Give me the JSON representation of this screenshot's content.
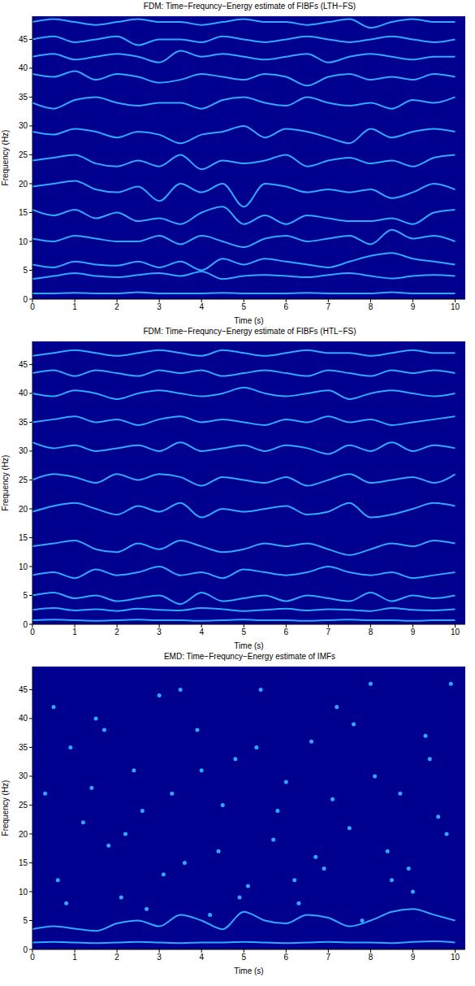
{
  "chart_data": [
    {
      "type": "line",
      "title": "FDM: Time−Frequncy−Energy estimate of FIBFs (LTH−FS)",
      "xlabel": "Time (s)",
      "ylabel": "Frequency (Hz)",
      "xlim": [
        0,
        10.24
      ],
      "xticks": [
        0,
        1,
        2,
        3,
        4,
        5,
        6,
        7,
        8,
        9,
        10
      ],
      "ylim": [
        0,
        49
      ],
      "yticks": [
        0,
        5,
        10,
        15,
        20,
        25,
        30,
        35,
        40,
        45
      ],
      "grid": false,
      "x": [
        0,
        0.5,
        1,
        1.5,
        2,
        2.5,
        3,
        3.5,
        4,
        4.5,
        5,
        5.5,
        6,
        6.5,
        7,
        7.5,
        8,
        8.5,
        9,
        9.5,
        10
      ],
      "series": [
        {
          "color": "#2fa8ff",
          "values": [
            1,
            1,
            1.1,
            1,
            1,
            1.2,
            1,
            1,
            1,
            1.1,
            1,
            1,
            1,
            1.1,
            1,
            1,
            1,
            1.2,
            1,
            1,
            1
          ]
        },
        {
          "color": "#2fa8ff",
          "values": [
            3.5,
            4,
            4.5,
            4,
            3.8,
            4.2,
            4.5,
            4,
            4.8,
            3.5,
            4,
            4.2,
            4,
            3.8,
            4.2,
            4.5,
            4,
            3.6,
            4,
            4.2,
            4
          ]
        },
        {
          "color": "#2fa8ff",
          "values": [
            6,
            5.5,
            6.5,
            6,
            5.8,
            6.5,
            5.5,
            6.5,
            5,
            7,
            6,
            7,
            6.5,
            6,
            5.5,
            6.5,
            7.5,
            8,
            7,
            6.5,
            6
          ]
        },
        {
          "color": "#2fa8ff",
          "values": [
            10.5,
            10,
            11,
            10.5,
            10,
            10,
            11,
            9.5,
            11,
            10,
            9,
            10.5,
            11,
            10,
            10.5,
            11,
            9.5,
            12,
            10.5,
            11,
            10
          ]
        },
        {
          "color": "#2fa8ff",
          "values": [
            15.5,
            14.5,
            15.5,
            14,
            15,
            13.5,
            14,
            13,
            15,
            16,
            13,
            14.5,
            13,
            14.5,
            14,
            13.5,
            13.5,
            14,
            13,
            15,
            15.5
          ]
        },
        {
          "color": "#2fa8ff",
          "values": [
            19.5,
            20,
            20.5,
            19,
            18.5,
            19.5,
            17,
            20,
            18.5,
            20,
            16,
            20,
            19.5,
            18.5,
            19,
            18.5,
            19,
            17.5,
            18.5,
            20,
            19
          ]
        },
        {
          "color": "#2fa8ff",
          "values": [
            24,
            24.5,
            25,
            23.5,
            23,
            24,
            23,
            25,
            22.5,
            24,
            23.5,
            24,
            25,
            23,
            24,
            24.5,
            23.5,
            24,
            23,
            24.5,
            25
          ]
        },
        {
          "color": "#2fa8ff",
          "values": [
            29,
            28.5,
            29.5,
            29,
            28,
            29,
            28.5,
            27,
            28.5,
            29,
            30,
            28,
            29.5,
            29,
            28,
            27,
            29.5,
            28,
            29,
            29.5,
            29
          ]
        },
        {
          "color": "#2fa8ff",
          "values": [
            34,
            33,
            34.5,
            35,
            34,
            33.5,
            34,
            34,
            33,
            34.5,
            35,
            34,
            33.5,
            35,
            34,
            33.5,
            34,
            33,
            34.5,
            34,
            35
          ]
        },
        {
          "color": "#2fa8ff",
          "values": [
            39,
            38.5,
            39.5,
            38,
            39,
            38.5,
            37.5,
            38,
            39,
            38.5,
            38,
            39,
            38.5,
            37,
            38.5,
            39,
            38,
            38.5,
            38,
            39,
            38.5
          ]
        },
        {
          "color": "#2fa8ff",
          "values": [
            42,
            42.5,
            41.5,
            42,
            42.5,
            42,
            41,
            43,
            42,
            42.5,
            42,
            41.5,
            42,
            42.5,
            41,
            42,
            42.5,
            42,
            41.5,
            42,
            42
          ]
        },
        {
          "color": "#2fa8ff",
          "values": [
            45,
            45.5,
            44.5,
            45,
            45.5,
            44,
            45,
            45,
            44.5,
            45.5,
            45,
            44.5,
            45,
            45.5,
            45,
            44.5,
            45,
            45.5,
            45,
            44.5,
            45
          ]
        },
        {
          "color": "#2fa8ff",
          "values": [
            48,
            48.5,
            48,
            47.5,
            48,
            48.5,
            48,
            48,
            47.5,
            48,
            48.5,
            48,
            48,
            47.5,
            48,
            48.5,
            47,
            48,
            48.5,
            48,
            48
          ]
        }
      ]
    },
    {
      "type": "line",
      "title": "FDM: Time−Frequncy−Energy estimate of FIBFs (HTL−FS)",
      "xlabel": "Time (s)",
      "ylabel": "Frequency (Hz)",
      "xlim": [
        0,
        10.24
      ],
      "xticks": [
        0,
        1,
        2,
        3,
        4,
        5,
        6,
        7,
        8,
        9,
        10
      ],
      "ylim": [
        0,
        49
      ],
      "yticks": [
        0,
        5,
        10,
        15,
        20,
        25,
        30,
        35,
        40,
        45
      ],
      "grid": false,
      "x": [
        0,
        0.5,
        1,
        1.5,
        2,
        2.5,
        3,
        3.5,
        4,
        4.5,
        5,
        5.5,
        6,
        6.5,
        7,
        7.5,
        8,
        8.5,
        9,
        9.5,
        10
      ],
      "series": [
        {
          "color": "#2fa8ff",
          "values": [
            0.7,
            0.8,
            0.7,
            0.6,
            0.7,
            0.8,
            0.7,
            0.7,
            0.6,
            0.7,
            0.8,
            0.7,
            0.7,
            0.6,
            0.7,
            0.8,
            0.7,
            0.7,
            0.6,
            0.7,
            0.7
          ]
        },
        {
          "color": "#2fa8ff",
          "values": [
            2.5,
            2.8,
            2.4,
            2.6,
            2.3,
            2.7,
            2.5,
            2.4,
            2.8,
            2.6,
            2.3,
            2.5,
            2.7,
            2.4,
            2.6,
            2.5,
            2.3,
            2.8,
            2.5,
            2.4,
            2.6
          ]
        },
        {
          "color": "#2fa8ff",
          "values": [
            5,
            5.5,
            4.5,
            5,
            4,
            4.5,
            5,
            3.5,
            5.5,
            4,
            4.5,
            5,
            4,
            5,
            4.5,
            4,
            5.5,
            4,
            5,
            4.5,
            5
          ]
        },
        {
          "color": "#2fa8ff",
          "values": [
            8.5,
            9,
            8,
            9.5,
            8.5,
            9,
            10,
            8.5,
            9,
            8,
            9.5,
            9,
            8.5,
            9,
            10,
            9,
            8.5,
            9,
            8,
            8.5,
            9
          ]
        },
        {
          "color": "#2fa8ff",
          "values": [
            13.5,
            14,
            14.5,
            13,
            12.5,
            14,
            13,
            14.5,
            13.5,
            12.5,
            13,
            14,
            13.5,
            14,
            13,
            12,
            13,
            14,
            13.5,
            14.5,
            14
          ]
        },
        {
          "color": "#2fa8ff",
          "values": [
            19.5,
            20.5,
            21,
            20,
            19,
            20.5,
            19.5,
            21,
            18.5,
            20,
            19.5,
            20,
            20.5,
            19,
            19.5,
            21,
            18.5,
            19,
            20,
            21,
            20.5
          ]
        },
        {
          "color": "#2fa8ff",
          "values": [
            25,
            26,
            25.5,
            24.5,
            26,
            25,
            26,
            25.5,
            24,
            25.5,
            25,
            24.5,
            25.5,
            24,
            25,
            26,
            24.5,
            25,
            25.5,
            24.5,
            26
          ]
        },
        {
          "color": "#2fa8ff",
          "values": [
            31.5,
            30.5,
            31,
            30,
            30.5,
            31,
            30,
            31.5,
            30,
            30.5,
            31,
            30,
            31,
            30.5,
            29.5,
            31,
            30,
            31.5,
            30,
            31,
            30.5
          ]
        },
        {
          "color": "#2fa8ff",
          "values": [
            35,
            35.5,
            36,
            35,
            35.5,
            34.5,
            35.5,
            36,
            35,
            35.5,
            35,
            34.5,
            35.5,
            35,
            36,
            35,
            35.5,
            34.5,
            35,
            35.5,
            36
          ]
        },
        {
          "color": "#2fa8ff",
          "values": [
            40,
            39.5,
            40.5,
            40,
            39,
            40,
            40.5,
            40,
            39.5,
            40,
            41,
            40,
            39.5,
            40,
            40.5,
            39,
            40,
            40.5,
            40,
            39.5,
            40
          ]
        },
        {
          "color": "#2fa8ff",
          "values": [
            43.5,
            44,
            43,
            44,
            43.5,
            43,
            44,
            43.5,
            44,
            43,
            43.5,
            44,
            43.5,
            43,
            44,
            43.5,
            43,
            44,
            43.5,
            44,
            43.5
          ]
        },
        {
          "color": "#2fa8ff",
          "values": [
            46.5,
            47,
            47.5,
            47,
            46.5,
            47,
            47.5,
            47,
            46.5,
            47.5,
            47,
            46.5,
            47,
            47.5,
            47,
            47,
            46.5,
            47,
            47.5,
            47,
            47
          ]
        }
      ]
    },
    {
      "type": "scatter",
      "title": "EMD: Time−Frequncy−Energy estimate of IMFs",
      "xlabel": "Time (s)",
      "ylabel": "Frequency (Hz)",
      "xlim": [
        0,
        10.24
      ],
      "xticks": [
        0,
        1,
        2,
        3,
        4,
        5,
        6,
        7,
        8,
        9,
        10
      ],
      "ylim": [
        0,
        49
      ],
      "yticks": [
        0,
        5,
        10,
        15,
        20,
        25,
        30,
        35,
        40,
        45
      ],
      "grid": false,
      "x": [
        0,
        0.5,
        1,
        1.5,
        2,
        2.5,
        3,
        3.5,
        4,
        4.5,
        5,
        5.5,
        6,
        6.5,
        7,
        7.5,
        8,
        8.5,
        9,
        9.5,
        10
      ],
      "series": [
        {
          "type": "scatter",
          "color": "#2fa8ff",
          "x": [
            0.3,
            0.6,
            0.9,
            1.2,
            1.5,
            1.8,
            2.1,
            2.4,
            2.7,
            3.0,
            3.3,
            3.6,
            3.9,
            4.2,
            4.5,
            4.8,
            5.1,
            5.4,
            5.7,
            6.0,
            6.3,
            6.6,
            6.9,
            7.2,
            7.5,
            7.8,
            8.1,
            8.4,
            8.7,
            9.0,
            9.3,
            9.6,
            9.9,
            0.5,
            1.4,
            2.2,
            3.1,
            4.0,
            4.9,
            5.8,
            6.7,
            7.6,
            8.5,
            9.4,
            0.8,
            1.7,
            2.6,
            3.5,
            4.4,
            5.3,
            6.2,
            7.1,
            8.0,
            8.9,
            9.8
          ],
          "values": [
            27,
            12,
            35,
            22,
            40,
            18,
            9,
            31,
            7,
            44,
            27,
            15,
            38,
            6,
            25,
            33,
            11,
            45,
            19,
            29,
            8,
            36,
            14,
            42,
            21,
            5,
            30,
            17,
            27,
            10,
            37,
            23,
            46,
            42,
            28,
            20,
            13,
            31,
            9,
            24,
            16,
            39,
            12,
            33,
            8,
            38,
            24,
            45,
            17,
            35,
            12,
            26,
            46,
            14,
            20
          ]
        },
        {
          "type": "line",
          "color": "#2fa8ff",
          "values": [
            1.2,
            1.3,
            1.2,
            1.1,
            1.2,
            1.3,
            1.2,
            1.1,
            1.2,
            1.2,
            1.3,
            1.2,
            1.1,
            1.2,
            1.3,
            1.2,
            1.2,
            1.1,
            1.3,
            1.4,
            1.2
          ]
        },
        {
          "type": "line",
          "color": "#2fa8ff",
          "values": [
            3.5,
            4,
            3.6,
            3.2,
            4.5,
            5,
            4,
            6,
            5,
            3.5,
            6.5,
            5,
            4.5,
            6,
            5.5,
            4,
            5,
            6.5,
            7,
            6,
            5
          ]
        }
      ]
    }
  ]
}
